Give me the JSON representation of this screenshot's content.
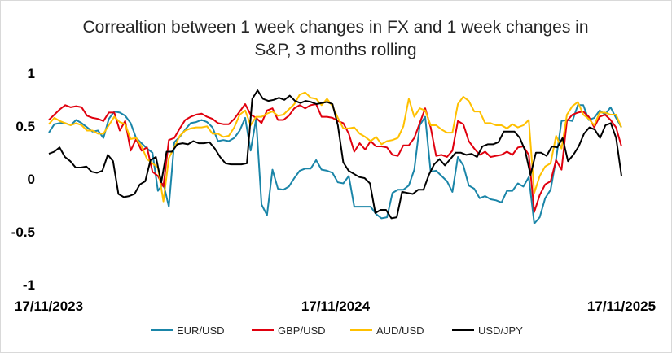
{
  "chart_data": {
    "type": "line",
    "title": [
      "Correaltion between 1 week changes in FX and 1 week changes in",
      "S&P, 3 months rolling"
    ],
    "xlabel": "",
    "ylabel": "",
    "ylim": [
      -1,
      1
    ],
    "yticks": [
      1,
      0.5,
      0,
      -0.5,
      -1
    ],
    "ytick_labels": [
      "1",
      "0.5",
      "0",
      "-0.5",
      "-1"
    ],
    "xtick_labels": [
      "17/11/2023",
      "17/11/2024",
      "17/11/2025"
    ],
    "xtick_positions": [
      0,
      52,
      104
    ],
    "grid": false,
    "legend_position": "bottom",
    "series": [
      {
        "name": "EUR/USD",
        "color": "#1a85a8",
        "values": [
          0.43,
          0.51,
          0.52,
          0.52,
          0.5,
          0.55,
          0.52,
          0.48,
          0.44,
          0.45,
          0.38,
          0.56,
          0.63,
          0.62,
          0.59,
          0.52,
          0.38,
          0.33,
          0.28,
          0.24,
          -0.12,
          -0.05,
          -0.27,
          0.34,
          0.39,
          0.46,
          0.52,
          0.53,
          0.55,
          0.53,
          0.48,
          0.35,
          0.36,
          0.35,
          0.38,
          0.45,
          0.57,
          0.26,
          0.56,
          -0.25,
          -0.35,
          0.08,
          -0.1,
          -0.11,
          -0.08,
          0,
          0.07,
          0.09,
          0.09,
          0.17,
          0.08,
          0.07,
          0.05,
          -0.04,
          -0.05,
          0.02,
          -0.27,
          -0.27,
          -0.27,
          -0.27,
          -0.34,
          -0.38,
          -0.37,
          -0.14,
          -0.11,
          -0.11,
          -0.07,
          0.08,
          0.5,
          0.58,
          0.06,
          0.07,
          0.02,
          -0.03,
          -0.13,
          0.2,
          0.12,
          -0.07,
          -0.1,
          -0.19,
          -0.17,
          -0.2,
          -0.21,
          -0.23,
          -0.12,
          -0.12,
          -0.05,
          -0.08,
          0.01,
          -0.43,
          -0.37,
          -0.19,
          -0.11,
          0.18,
          0.54,
          0.55,
          0.54,
          0.69,
          0.69,
          0.55,
          0.57,
          0.64,
          0.6,
          0.67,
          0.57,
          0.48
        ]
      },
      {
        "name": "GBP/USD",
        "color": "#e0000e",
        "values": [
          0.55,
          0.6,
          0.65,
          0.69,
          0.67,
          0.68,
          0.67,
          0.59,
          0.57,
          0.56,
          0.54,
          0.62,
          0.62,
          0.45,
          0.54,
          0.26,
          0.37,
          0.26,
          0.29,
          0.06,
          0.02,
          -0.08,
          0.36,
          0.38,
          0.47,
          0.55,
          0.58,
          0.6,
          0.61,
          0.58,
          0.56,
          0.52,
          0.51,
          0.51,
          0.56,
          0.63,
          0.7,
          0.6,
          0.57,
          0.52,
          0.64,
          0.66,
          0.55,
          0.55,
          0.59,
          0.66,
          0.69,
          0.66,
          0.69,
          0.7,
          0.58,
          0.58,
          0.57,
          0.54,
          0.52,
          0.42,
          0.25,
          0.33,
          0.27,
          0.35,
          0.3,
          0.3,
          0.29,
          0.22,
          0.21,
          0.31,
          0.31,
          0.38,
          0.52,
          0.66,
          0.48,
          0.21,
          0.22,
          0.2,
          0.26,
          0.54,
          0.51,
          0.35,
          0.28,
          0.22,
          0.25,
          0.2,
          0.21,
          0.22,
          0.25,
          0.22,
          0.29,
          0.3,
          0.22,
          -0.32,
          -0.16,
          -0.06,
          -0.03,
          0.17,
          0.08,
          0.54,
          0.6,
          0.62,
          0.63,
          0.58,
          0.48,
          0.58,
          0.6,
          0.55,
          0.48,
          0.3
        ]
      },
      {
        "name": "AUD/USD",
        "color": "#ffc000",
        "values": [
          0.51,
          0.57,
          0.54,
          0.52,
          0.5,
          0.52,
          0.5,
          0.45,
          0.45,
          0.42,
          0.42,
          0.5,
          0.58,
          0.53,
          0.51,
          0.37,
          0.38,
          0.3,
          0.18,
          0.14,
          0.1,
          -0.22,
          0.19,
          0.29,
          0.4,
          0.45,
          0.47,
          0.48,
          0.48,
          0.49,
          0.42,
          0.42,
          0.39,
          0.4,
          0.48,
          0.6,
          0.64,
          0.5,
          0.58,
          0.58,
          0.61,
          0.63,
          0.59,
          0.6,
          0.65,
          0.7,
          0.79,
          0.81,
          0.76,
          0.75,
          0.69,
          0.75,
          0.68,
          0.57,
          0.47,
          0.47,
          0.48,
          0.42,
          0.39,
          0.35,
          0.39,
          0.32,
          0.35,
          0.36,
          0.38,
          0.49,
          0.75,
          0.58,
          0.66,
          0.64,
          0.5,
          0.5,
          0.46,
          0.43,
          0.43,
          0.7,
          0.77,
          0.73,
          0.63,
          0.63,
          0.52,
          0.52,
          0.5,
          0.5,
          0.47,
          0.51,
          0.48,
          0.5,
          0.55,
          -0.14,
          0.02,
          0.11,
          0.14,
          0.4,
          0.28,
          0.6,
          0.68,
          0.72,
          0.6,
          0.56,
          0.5,
          0.62,
          0.62,
          0.6,
          0.6,
          0.48
        ]
      },
      {
        "name": "USD/JPY",
        "color": "#000000",
        "values": [
          0.23,
          0.25,
          0.29,
          0.2,
          0.16,
          0.1,
          0.1,
          0.11,
          0.06,
          0.05,
          0.07,
          0.22,
          0.16,
          -0.15,
          -0.18,
          -0.17,
          -0.15,
          -0.06,
          -0.03,
          0.17,
          0.2,
          -0.04,
          0.25,
          0.25,
          0.32,
          0.33,
          0.32,
          0.35,
          0.33,
          0.33,
          0.34,
          0.28,
          0.2,
          0.14,
          0.13,
          0.13,
          0.13,
          0.14,
          0.75,
          0.83,
          0.75,
          0.73,
          0.74,
          0.76,
          0.74,
          0.78,
          0.73,
          0.71,
          0.73,
          0.72,
          0.7,
          0.71,
          0.72,
          0.7,
          0.5,
          0.15,
          0.07,
          0.04,
          0.01,
          0,
          -0.05,
          -0.33,
          -0.3,
          -0.3,
          -0.38,
          -0.37,
          -0.13,
          -0.14,
          -0.15,
          -0.11,
          -0.11,
          0.03,
          0.13,
          0.18,
          0.12,
          0.18,
          0.24,
          0.24,
          0.22,
          0.23,
          0.2,
          0.3,
          0.32,
          0.32,
          0.34,
          0.44,
          0.44,
          0.44,
          0.38,
          0.26,
          0.03,
          0.24,
          0.24,
          0.21,
          0.3,
          0.29,
          0.38,
          0.16,
          0.22,
          0.3,
          0.42,
          0.48,
          0.46,
          0.38,
          0.5,
          0.52,
          0.38,
          0.02
        ]
      }
    ]
  }
}
